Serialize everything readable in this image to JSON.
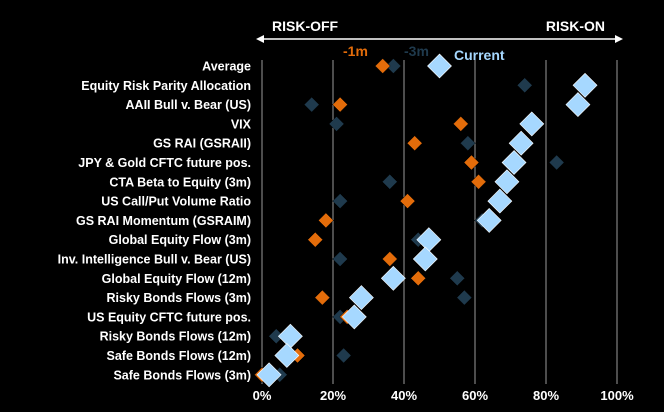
{
  "chart_data": {
    "type": "scatter",
    "risk_off_label": "RISK-OFF",
    "risk_on_label": "RISK-ON",
    "categories": [
      "Average",
      "Equity Risk Parity Allocation",
      "AAII Bull v. Bear (US)",
      "VIX",
      "GS RAI (GSRAII)",
      "JPY & Gold CFTC future pos.",
      "CTA Beta to Equity (3m)",
      "US Call/Put Volume Ratio",
      "GS RAI Momentum (GSRAIM)",
      "Global Equity Flow (3m)",
      "Inv. Intelligence Bull v. Bear (US)",
      "Global Equity Flow (12m)",
      "Risky Bonds Flows (3m)",
      "US Equity CFTC future pos.",
      "Risky Bonds Flows (12m)",
      "Safe Bonds Flows (12m)",
      "Safe Bonds Flows (3m)"
    ],
    "series": [
      {
        "name": "-3m",
        "color": "#1f3a4d",
        "marker": "small-diamond",
        "values": [
          37,
          74,
          14,
          21,
          58,
          83,
          36,
          22,
          62,
          44,
          22,
          55,
          57,
          22,
          4,
          23,
          5
        ]
      },
      {
        "name": "-1m",
        "color": "#e36c0a",
        "marker": "small-diamond",
        "values": [
          34,
          90,
          22,
          56,
          43,
          59,
          61,
          41,
          18,
          15,
          36,
          44,
          17,
          24,
          7,
          10,
          0
        ]
      },
      {
        "name": "Current",
        "color": "#a6d8ff",
        "marker": "large-diamond",
        "values": [
          50,
          91,
          89,
          76,
          73,
          71,
          69,
          67,
          64,
          47,
          46,
          37,
          28,
          26,
          8,
          7,
          2
        ]
      }
    ],
    "xlim": [
      0,
      100
    ],
    "xticks": [
      "0%",
      "20%",
      "40%",
      "60%",
      "80%",
      "100%"
    ],
    "grid": true
  }
}
